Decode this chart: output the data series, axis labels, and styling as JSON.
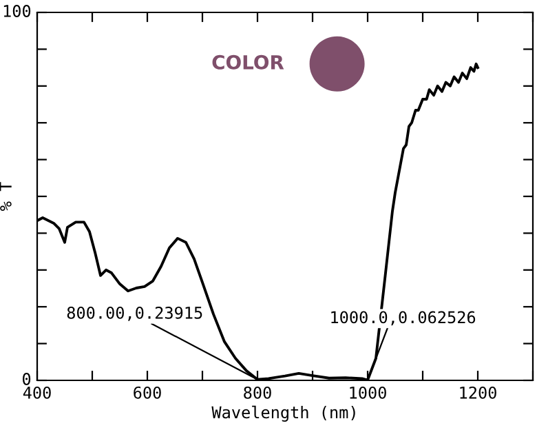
{
  "chart_data": {
    "type": "line",
    "xlabel": "Wavelength (nm)",
    "ylabel": "% T",
    "annotations": [
      {
        "text": "800.00,0.23915",
        "x": 800,
        "y": 0.23915
      },
      {
        "text": "1000.0,0.062526",
        "x": 1000,
        "y": 0.062526
      },
      "COLOR"
    ],
    "series": [
      {
        "color": "#000000",
        "x": [
          400,
          410,
          430,
          440,
          450,
          455,
          470,
          485,
          495,
          505,
          515,
          525,
          535,
          550,
          565,
          580,
          595,
          610,
          625,
          640,
          655,
          670,
          685,
          700,
          720,
          740,
          760,
          780,
          800,
          820,
          850,
          875,
          900,
          930,
          960,
          990,
          1000,
          1015,
          1032,
          1045,
          1050,
          1065,
          1070,
          1075,
          1080,
          1087,
          1092,
          1100,
          1107,
          1112,
          1120,
          1127,
          1135,
          1142,
          1150,
          1157,
          1165,
          1172,
          1180,
          1187,
          1193,
          1197,
          1200
        ],
        "values": [
          43.4,
          44.2,
          42.7,
          41.2,
          37.5,
          41.6,
          43,
          43,
          40.4,
          34.8,
          28.5,
          30,
          29.2,
          26.2,
          24.3,
          25.1,
          25.5,
          27,
          31,
          36,
          38.6,
          37.5,
          33,
          26.6,
          18,
          10.5,
          6,
          2.6,
          0.23915,
          0.5,
          1.2,
          1.9,
          1.3,
          0.6,
          0.7,
          0.5,
          0.062526,
          6,
          28.5,
          46,
          51,
          63,
          64,
          69,
          70,
          73.4,
          73.4,
          76.4,
          76.4,
          79,
          77.5,
          80,
          78.5,
          81,
          80,
          82.5,
          81,
          83.5,
          82,
          85,
          84,
          86,
          85
        ]
      }
    ],
    "xlim": [
      400,
      1300
    ],
    "ylim": [
      0,
      100
    ],
    "xticks": [
      400,
      {
        "value": 500,
        "label": null
      },
      600,
      {
        "value": 700,
        "label": null
      },
      800,
      {
        "value": 900,
        "label": null
      },
      1000,
      {
        "value": 1100,
        "label": null
      },
      1200,
      {
        "value": 1300,
        "label": null
      }
    ],
    "yticks": [
      0,
      {
        "value": 10,
        "label": null
      },
      {
        "value": 20,
        "label": null
      },
      {
        "value": 30,
        "label": null
      },
      {
        "value": 40,
        "label": null
      },
      {
        "value": 50,
        "label": null
      },
      {
        "value": 60,
        "label": null
      },
      {
        "value": 70,
        "label": null
      },
      {
        "value": 80,
        "label": null
      },
      {
        "value": 90,
        "label": null
      },
      100
    ],
    "grid": false,
    "legend": false,
    "marker": "none",
    "line_style": "solid"
  }
}
